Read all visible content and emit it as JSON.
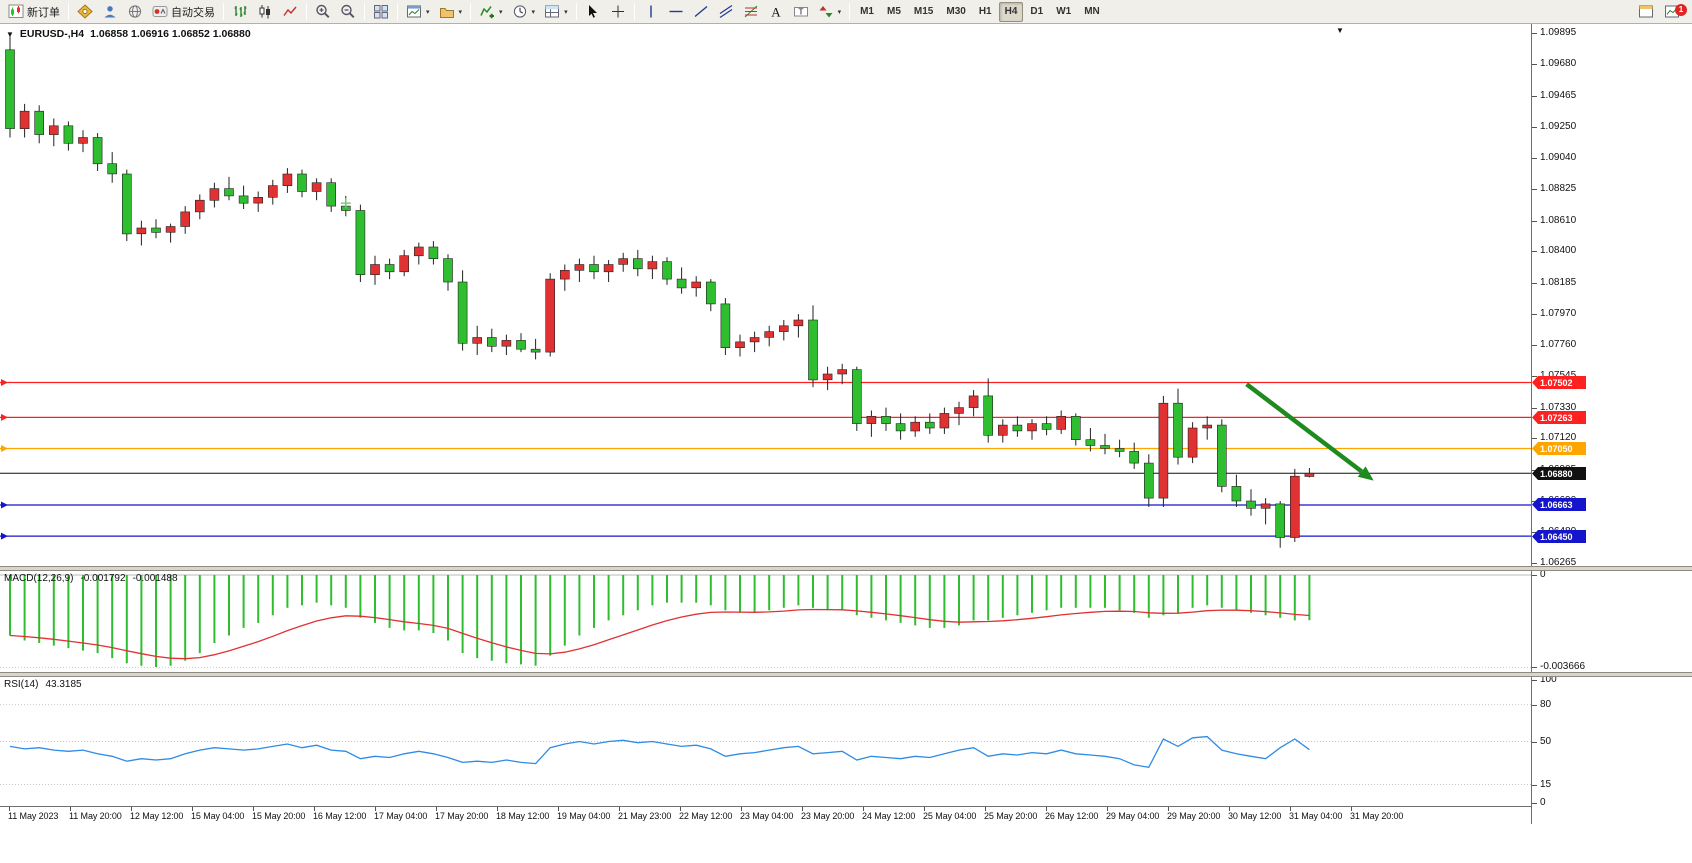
{
  "toolbar": {
    "items": [
      {
        "name": "new-order-button",
        "icon": "new-order-icon",
        "label": "新订单"
      },
      {
        "sep": true
      },
      {
        "name": "metaeditor-button",
        "icon": "compass-icon"
      },
      {
        "name": "market-button",
        "icon": "person-icon"
      },
      {
        "name": "community-button",
        "icon": "globe-icon"
      },
      {
        "name": "autotrade-button",
        "icon": "autotrade-icon",
        "label": "自动交易"
      },
      {
        "sep": true
      },
      {
        "name": "ohlc-bars-button",
        "icon": "ohlc-bars-icon"
      },
      {
        "name": "candlestick-mode-button",
        "icon": "candles-icon"
      },
      {
        "name": "line-chart-mode-button",
        "icon": "line-chart-icon"
      },
      {
        "sep": true
      },
      {
        "name": "zoom-in-button",
        "icon": "zoom-in-icon"
      },
      {
        "name": "zoom-out-button",
        "icon": "zoom-out-icon"
      },
      {
        "sep": true
      },
      {
        "name": "tile-windows-button",
        "icon": "tile-icon"
      },
      {
        "sep": true
      },
      {
        "name": "new-chart-button",
        "icon": "new-chart-icon",
        "dropdown": true
      },
      {
        "name": "profiles-button",
        "icon": "profiles-icon",
        "dropdown": true
      },
      {
        "sep": true
      },
      {
        "name": "indicators-button",
        "icon": "indicators-icon",
        "dropdown": true
      },
      {
        "name": "periods-button",
        "icon": "clock-icon",
        "dropdown": true
      },
      {
        "name": "templates-button",
        "icon": "template-icon",
        "dropdown": true
      },
      {
        "sep": true
      },
      {
        "name": "cursor-button",
        "icon": "cursor-icon"
      },
      {
        "name": "crosshair-button",
        "icon": "crosshair-icon"
      },
      {
        "sep": true
      },
      {
        "name": "vertical-line-button",
        "icon": "vline-icon"
      },
      {
        "name": "horizontal-line-button",
        "icon": "hline-icon"
      },
      {
        "name": "trendline-button",
        "icon": "trendline-icon"
      },
      {
        "name": "channel-button",
        "icon": "channel-icon"
      },
      {
        "name": "fibonacci-button",
        "icon": "fibonacci-icon"
      },
      {
        "name": "text-button",
        "icon": "text-icon"
      },
      {
        "name": "label-button",
        "icon": "label-icon"
      },
      {
        "name": "arrows-button",
        "icon": "arrows-icon",
        "dropdown": true
      },
      {
        "sep": true
      }
    ],
    "timeframes": [
      "M1",
      "M5",
      "M15",
      "M30",
      "H1",
      "H4",
      "D1",
      "W1",
      "MN"
    ],
    "active_timeframe": "H4",
    "right_items": [
      {
        "name": "data-window-button",
        "icon": "window-icon"
      },
      {
        "name": "alerts-button",
        "icon": "chart-badge-icon",
        "badge": "1"
      }
    ]
  },
  "chart_data": [
    {
      "type": "candlestick",
      "symbol": "EURUSD-",
      "timeframe": "H4",
      "title": "EURUSD-,H4",
      "ohlc_text": "1.06858 1.06916 1.06852 1.06880",
      "current": {
        "open": 1.06858,
        "high": 1.06916,
        "low": 1.06852,
        "close": 1.0688
      },
      "ylim": [
        1.06245,
        1.09957
      ],
      "y_ticks": [
        "1.09895",
        "1.09680",
        "1.09465",
        "1.09250",
        "1.09040",
        "1.08825",
        "1.08610",
        "1.08400",
        "1.08185",
        "1.07970",
        "1.07760",
        "1.07545",
        "1.07330",
        "1.07120",
        "1.06905",
        "1.06690",
        "1.06480",
        "1.06265"
      ],
      "x_labels": [
        "11 May 2023",
        "11 May 20:00",
        "12 May 12:00",
        "15 May 04:00",
        "15 May 20:00",
        "16 May 12:00",
        "17 May 04:00",
        "17 May 20:00",
        "18 May 12:00",
        "19 May 04:00",
        "21 May 23:00",
        "22 May 12:00",
        "23 May 04:00",
        "23 May 20:00",
        "24 May 12:00",
        "25 May 04:00",
        "25 May 20:00",
        "26 May 12:00",
        "29 May 04:00",
        "29 May 20:00",
        "30 May 12:00",
        "31 May 04:00",
        "31 May 20:00"
      ],
      "colors": {
        "up": "#E03232",
        "down": "#2FBE2F",
        "wick": "#222222"
      },
      "candles": [
        [
          1.0978,
          1.0989,
          1.0918,
          1.0924
        ],
        [
          1.0924,
          1.0941,
          1.0918,
          1.0936
        ],
        [
          1.0936,
          1.094,
          1.0914,
          1.092
        ],
        [
          1.092,
          1.0931,
          1.0912,
          1.0926
        ],
        [
          1.0926,
          1.0929,
          1.0909,
          1.0914
        ],
        [
          1.0914,
          1.0923,
          1.0908,
          1.0918
        ],
        [
          1.0918,
          1.0921,
          1.0895,
          1.09
        ],
        [
          1.09,
          1.0908,
          1.0887,
          1.0893
        ],
        [
          1.0893,
          1.0896,
          1.0847,
          1.0852
        ],
        [
          1.0852,
          1.0861,
          1.0844,
          1.0856
        ],
        [
          1.0856,
          1.0862,
          1.0849,
          1.0853
        ],
        [
          1.0853,
          1.0859,
          1.0846,
          1.0857
        ],
        [
          1.0857,
          1.0871,
          1.0852,
          1.0867
        ],
        [
          1.0867,
          1.0879,
          1.0862,
          1.0875
        ],
        [
          1.0875,
          1.0887,
          1.087,
          1.0883
        ],
        [
          1.0883,
          1.0891,
          1.0875,
          1.0878
        ],
        [
          1.0878,
          1.0885,
          1.0869,
          1.0873
        ],
        [
          1.0873,
          1.0881,
          1.0867,
          1.0877
        ],
        [
          1.0877,
          1.0889,
          1.0872,
          1.0885
        ],
        [
          1.0885,
          1.0897,
          1.088,
          1.0893
        ],
        [
          1.0893,
          1.0896,
          1.0877,
          1.0881
        ],
        [
          1.0881,
          1.089,
          1.0875,
          1.0887
        ],
        [
          1.0887,
          1.089,
          1.0867,
          1.0871
        ],
        [
          1.0871,
          1.0878,
          1.0864,
          1.0868
        ],
        [
          1.0868,
          1.0872,
          1.0819,
          1.0824
        ],
        [
          1.0824,
          1.0837,
          1.0817,
          1.0831
        ],
        [
          1.0831,
          1.0835,
          1.0821,
          1.0826
        ],
        [
          1.0826,
          1.0841,
          1.0823,
          1.0837
        ],
        [
          1.0837,
          1.0846,
          1.0831,
          1.0843
        ],
        [
          1.0843,
          1.0847,
          1.0831,
          1.0835
        ],
        [
          1.0835,
          1.0838,
          1.0813,
          1.0819
        ],
        [
          1.0819,
          1.0827,
          1.0772,
          1.0777
        ],
        [
          1.0777,
          1.0789,
          1.0769,
          1.0781
        ],
        [
          1.0781,
          1.0787,
          1.0771,
          1.0775
        ],
        [
          1.0775,
          1.0783,
          1.0769,
          1.0779
        ],
        [
          1.0779,
          1.0784,
          1.0771,
          1.0773
        ],
        [
          1.0773,
          1.078,
          1.0766,
          1.0771
        ],
        [
          1.0771,
          1.0825,
          1.0768,
          1.0821
        ],
        [
          1.0821,
          1.0831,
          1.0813,
          1.0827
        ],
        [
          1.0827,
          1.0835,
          1.0819,
          1.0831
        ],
        [
          1.0831,
          1.0837,
          1.0821,
          1.0826
        ],
        [
          1.0826,
          1.0834,
          1.0819,
          1.0831
        ],
        [
          1.0831,
          1.0839,
          1.0826,
          1.0835
        ],
        [
          1.0835,
          1.0841,
          1.0823,
          1.0828
        ],
        [
          1.0828,
          1.0837,
          1.0821,
          1.0833
        ],
        [
          1.0833,
          1.0836,
          1.0817,
          1.0821
        ],
        [
          1.0821,
          1.0829,
          1.0811,
          1.0815
        ],
        [
          1.0815,
          1.0823,
          1.0809,
          1.0819
        ],
        [
          1.0819,
          1.0821,
          1.0799,
          1.0804
        ],
        [
          1.0804,
          1.0808,
          1.0769,
          1.0774
        ],
        [
          1.0774,
          1.0783,
          1.0768,
          1.0778
        ],
        [
          1.0778,
          1.0785,
          1.0771,
          1.0781
        ],
        [
          1.0781,
          1.0789,
          1.0775,
          1.0785
        ],
        [
          1.0785,
          1.0793,
          1.0779,
          1.0789
        ],
        [
          1.0789,
          1.0797,
          1.0781,
          1.0793
        ],
        [
          1.0793,
          1.0803,
          1.0747,
          1.0752
        ],
        [
          1.0752,
          1.0761,
          1.0745,
          1.0756
        ],
        [
          1.0756,
          1.0763,
          1.0749,
          1.0759
        ],
        [
          1.0759,
          1.0761,
          1.0717,
          1.0722
        ],
        [
          1.0722,
          1.0731,
          1.0713,
          1.0727
        ],
        [
          1.0727,
          1.0733,
          1.0717,
          1.0722
        ],
        [
          1.0722,
          1.0729,
          1.0711,
          1.0717
        ],
        [
          1.0717,
          1.0727,
          1.0713,
          1.0723
        ],
        [
          1.0723,
          1.0729,
          1.0715,
          1.0719
        ],
        [
          1.0719,
          1.0733,
          1.0715,
          1.0729
        ],
        [
          1.0729,
          1.0737,
          1.0721,
          1.0733
        ],
        [
          1.0733,
          1.0745,
          1.0727,
          1.0741
        ],
        [
          1.0741,
          1.0753,
          1.0709,
          1.0714
        ],
        [
          1.0714,
          1.0725,
          1.0709,
          1.0721
        ],
        [
          1.0721,
          1.0727,
          1.0713,
          1.0717
        ],
        [
          1.0717,
          1.0725,
          1.0711,
          1.0722
        ],
        [
          1.0722,
          1.0727,
          1.0714,
          1.0718
        ],
        [
          1.0718,
          1.0731,
          1.0715,
          1.0727
        ],
        [
          1.0727,
          1.0729,
          1.0707,
          1.0711
        ],
        [
          1.0711,
          1.0719,
          1.0703,
          1.0707
        ],
        [
          1.0707,
          1.0715,
          1.0701,
          1.0705
        ],
        [
          1.0705,
          1.0711,
          1.0699,
          1.0703
        ],
        [
          1.0703,
          1.0709,
          1.0691,
          1.0695
        ],
        [
          1.0695,
          1.0701,
          1.0665,
          1.0671
        ],
        [
          1.0671,
          1.0741,
          1.0665,
          1.0736
        ],
        [
          1.0736,
          1.0746,
          1.0694,
          1.0699
        ],
        [
          1.0699,
          1.0723,
          1.0695,
          1.0719
        ],
        [
          1.0719,
          1.0727,
          1.0711,
          1.0721
        ],
        [
          1.0721,
          1.0725,
          1.0675,
          1.0679
        ],
        [
          1.0679,
          1.0687,
          1.0665,
          1.0669
        ],
        [
          1.0669,
          1.0677,
          1.0659,
          1.0664
        ],
        [
          1.0664,
          1.0671,
          1.0653,
          1.0667
        ],
        [
          1.0667,
          1.0669,
          1.0637,
          1.0644
        ],
        [
          1.0644,
          1.0691,
          1.0641,
          1.0686
        ],
        [
          1.06858,
          1.06916,
          1.06852,
          1.0688
        ]
      ],
      "hlines": [
        {
          "price": 1.07502,
          "color": "#FF2020",
          "label": "1.07502"
        },
        {
          "price": 1.07263,
          "color": "#FF2020",
          "label": "1.07263"
        },
        {
          "price": 1.0705,
          "color": "#FFA500",
          "label": "1.07050"
        },
        {
          "price": 1.0688,
          "color": "#111111",
          "label": "1.06880",
          "current": true
        },
        {
          "price": 1.06663,
          "color": "#1515CC",
          "label": "1.06663"
        },
        {
          "price": 1.0645,
          "color": "#1515CC",
          "label": "1.06450"
        }
      ],
      "trend_arrow": {
        "from_index": 84.7,
        "from_price": 1.0749,
        "to_index": 93.4,
        "to_price": 1.0683,
        "color": "#1F8B1F"
      },
      "cross_marker": {
        "index": 23,
        "price": 1.0873,
        "color": "#7AC47A"
      }
    },
    {
      "type": "bar",
      "name": "MACD(12,26,9)",
      "values_text": [
        "-0.001792",
        "-0.001488"
      ],
      "current_macd": -0.001792,
      "current_signal": -0.001488,
      "scale_labels": [
        "0",
        "-0.003666"
      ],
      "scale_values": [
        0,
        -0.003666
      ],
      "ylim": [
        -0.00385,
        0.00016
      ],
      "colors": {
        "histogram": "#2FBE2F",
        "signal": "#E03232"
      },
      "values": [
        -0.0024,
        -0.0026,
        -0.0027,
        -0.0028,
        -0.0029,
        -0.003,
        -0.0031,
        -0.0033,
        -0.0035,
        -0.0036,
        -0.00365,
        -0.0036,
        -0.0034,
        -0.0031,
        -0.0027,
        -0.0024,
        -0.0021,
        -0.0019,
        -0.0016,
        -0.0013,
        -0.0012,
        -0.0011,
        -0.0012,
        -0.0013,
        -0.0017,
        -0.0019,
        -0.0021,
        -0.0022,
        -0.0022,
        -0.0023,
        -0.0026,
        -0.0031,
        -0.0033,
        -0.0034,
        -0.0035,
        -0.00355,
        -0.0036,
        -0.0032,
        -0.0028,
        -0.0024,
        -0.0021,
        -0.0018,
        -0.0016,
        -0.0014,
        -0.0012,
        -0.0011,
        -0.0011,
        -0.0011,
        -0.0012,
        -0.0014,
        -0.0015,
        -0.0015,
        -0.0014,
        -0.0013,
        -0.0012,
        -0.0013,
        -0.0014,
        -0.0014,
        -0.0016,
        -0.0017,
        -0.0018,
        -0.0019,
        -0.002,
        -0.0021,
        -0.0021,
        -0.002,
        -0.0018,
        -0.0018,
        -0.0017,
        -0.0016,
        -0.0015,
        -0.0014,
        -0.0013,
        -0.0013,
        -0.0013,
        -0.0013,
        -0.0014,
        -0.0015,
        -0.0017,
        -0.0016,
        -0.0015,
        -0.0013,
        -0.0012,
        -0.0013,
        -0.0014,
        -0.0015,
        -0.0016,
        -0.0017,
        -0.0018,
        -0.001792
      ]
    },
    {
      "type": "line",
      "name": "RSI(14)",
      "value_text": "43.3185",
      "current": 43.3185,
      "scale_labels": [
        "100",
        "80",
        "50",
        "15",
        "0"
      ],
      "scale_values": [
        100,
        80,
        50,
        15,
        0
      ],
      "levels": [
        80,
        50,
        15
      ],
      "ylim": [
        0,
        100
      ],
      "color": "#2E8BE6",
      "values": [
        46,
        44,
        45,
        43,
        42,
        43,
        40,
        38,
        34,
        36,
        35,
        36,
        40,
        43,
        45,
        44,
        43,
        44,
        46,
        48,
        45,
        47,
        43,
        42,
        36,
        38,
        37,
        40,
        42,
        40,
        37,
        33,
        34,
        33,
        35,
        33,
        32,
        45,
        48,
        50,
        48,
        50,
        51,
        49,
        50,
        48,
        46,
        47,
        44,
        38,
        40,
        41,
        43,
        45,
        46,
        40,
        41,
        42,
        35,
        38,
        37,
        36,
        38,
        37,
        40,
        43,
        45,
        38,
        40,
        39,
        41,
        40,
        43,
        40,
        39,
        38,
        36,
        31,
        29,
        52,
        46,
        53,
        54,
        43,
        40,
        38,
        36,
        45,
        52,
        43.32
      ]
    }
  ]
}
